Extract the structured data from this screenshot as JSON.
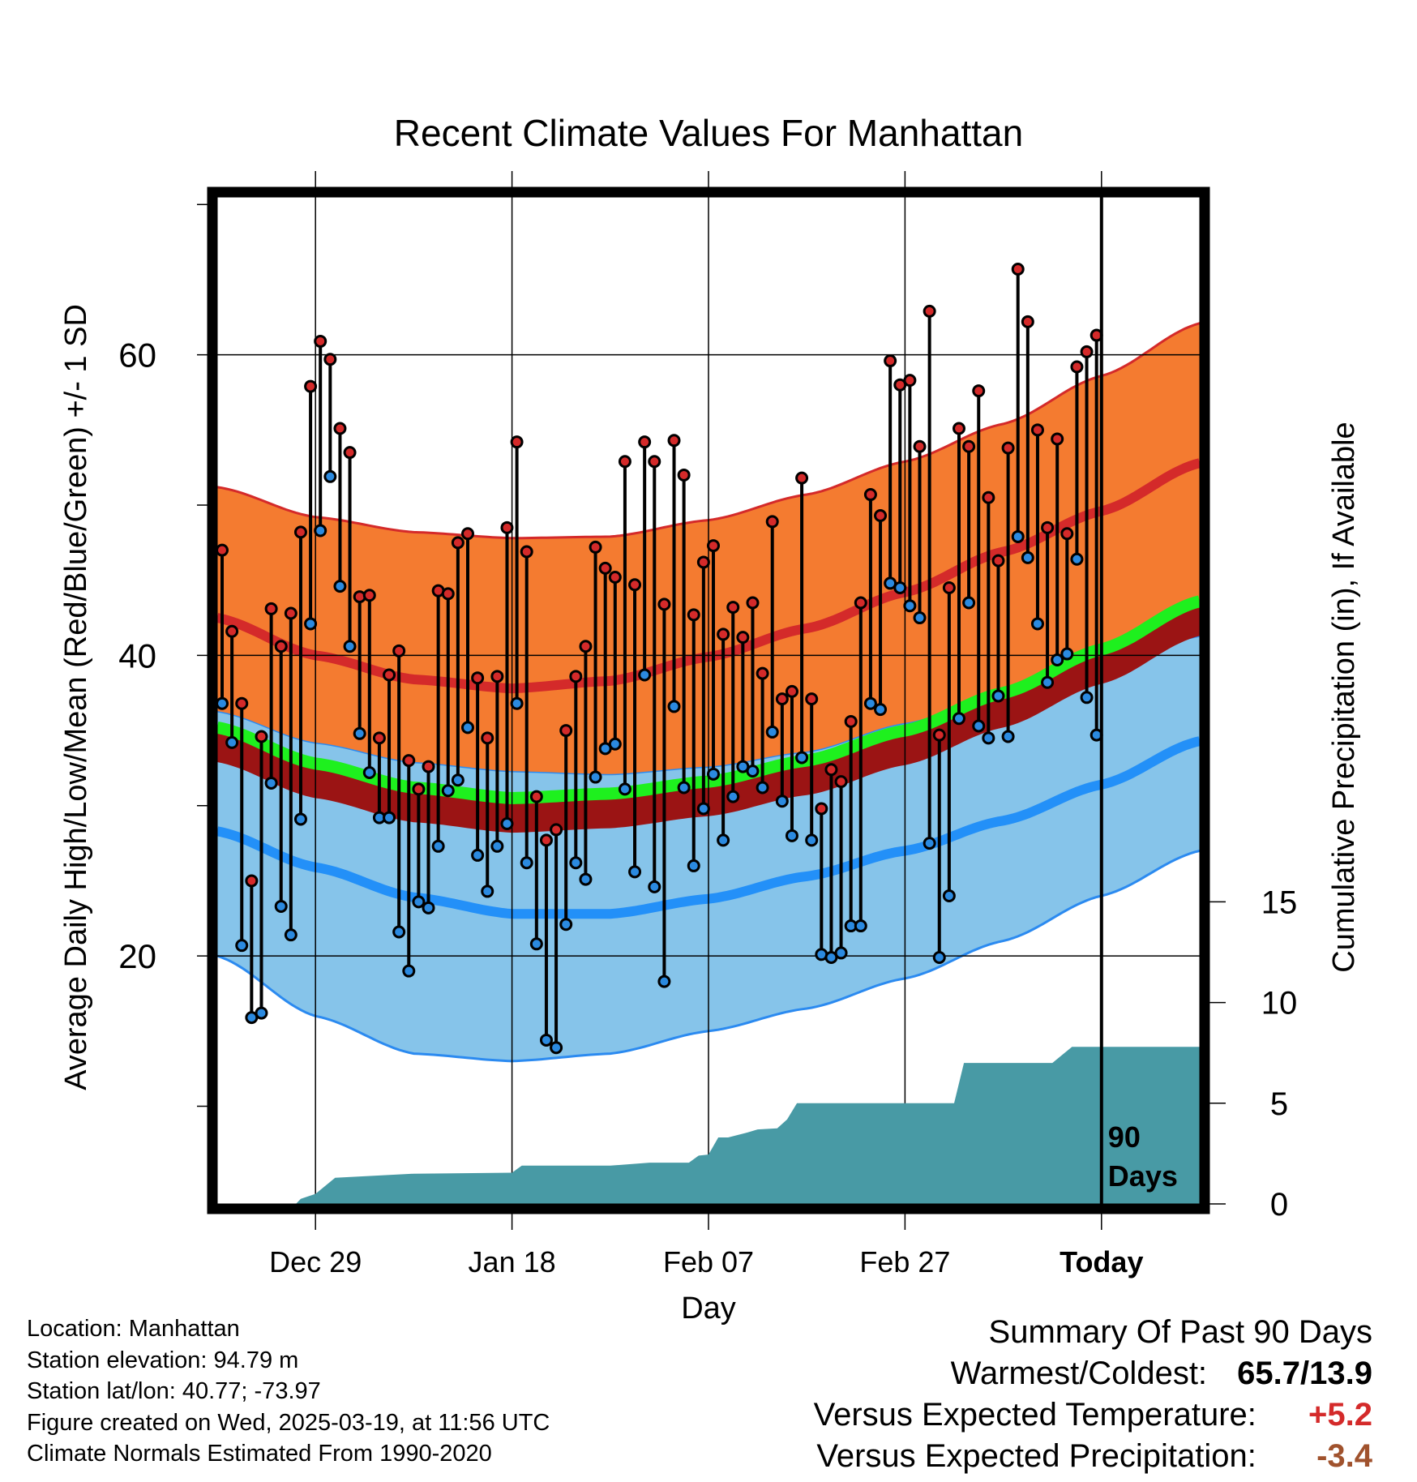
{
  "chart_data": {
    "type": "climate-range",
    "title": "Recent Climate Values For Manhattan",
    "xlabel": "Day",
    "ylabel_left": "Average Daily High/Low/Mean (Red/Blue/Green) +/- 1 SD",
    "ylabel_right": "Cumulative Precipitation (in), If Available",
    "x_tick_labels": [
      "Dec 29",
      "Jan 18",
      "Feb 07",
      "Feb 27",
      "Today"
    ],
    "x_tick_days": [
      10,
      30,
      50,
      70,
      90
    ],
    "x_days": 100,
    "y_left_ticks": [
      20,
      40,
      60
    ],
    "y_left_range": [
      3.5,
      70.5
    ],
    "y_right_ticks": [
      0,
      5,
      10,
      15
    ],
    "y_right_range": [
      0,
      50
    ],
    "today_day": 90,
    "today_label": [
      "90",
      "Days"
    ],
    "legend": "none",
    "colors": {
      "high_band": "#f47b30",
      "high_edge": "#d42a2a",
      "high_mean": "#d42a2a",
      "low_band": "#86c4ea",
      "low_edge": "#2b8af0",
      "low_mean": "#2390f8",
      "mean_line": "#1ef01e",
      "mean_band_dark": "#9b1414",
      "precip": "#489aa5",
      "high_marker": "#d42a2a",
      "low_marker": "#2b8ae0"
    },
    "normals": {
      "day": [
        0,
        10,
        20,
        30,
        40,
        50,
        60,
        70,
        80,
        90,
        100
      ],
      "high_mean": [
        42.5,
        40.0,
        38.4,
        37.8,
        38.3,
        39.9,
        41.8,
        44.2,
        46.9,
        49.6,
        52.8
      ],
      "high_upper": [
        51.2,
        49.2,
        48.2,
        47.8,
        47.9,
        49.0,
        50.7,
        52.9,
        55.4,
        58.6,
        62.1
      ],
      "high_lower": [
        36.3,
        34.2,
        32.9,
        32.3,
        32.1,
        32.6,
        33.6,
        35.5,
        37.5,
        39.3,
        41.3
      ],
      "low_mean": [
        28.3,
        25.9,
        23.9,
        22.8,
        22.8,
        23.8,
        25.3,
        27.0,
        29.0,
        31.4,
        34.3
      ],
      "low_upper": [
        36.3,
        34.2,
        32.9,
        32.3,
        32.1,
        32.6,
        33.6,
        35.5,
        37.5,
        39.3,
        41.3
      ],
      "low_lower": [
        20.0,
        16.0,
        13.5,
        13.0,
        13.5,
        15.0,
        16.5,
        18.5,
        21.0,
        24.0,
        27.0
      ],
      "mean_line": [
        35.2,
        32.8,
        31.2,
        30.5,
        30.8,
        31.6,
        33.0,
        35.0,
        37.5,
        40.4,
        43.6
      ]
    },
    "daily": [
      {
        "day": 0,
        "high": 47.0,
        "low": 36.8
      },
      {
        "day": 1,
        "high": 41.6,
        "low": 34.2
      },
      {
        "day": 2,
        "high": 36.8,
        "low": 20.7
      },
      {
        "day": 3,
        "high": 25.0,
        "low": 15.9
      },
      {
        "day": 4,
        "high": 34.6,
        "low": 16.2
      },
      {
        "day": 5,
        "high": 43.1,
        "low": 31.5
      },
      {
        "day": 6,
        "high": 40.6,
        "low": 23.3
      },
      {
        "day": 7,
        "high": 42.8,
        "low": 21.4
      },
      {
        "day": 8,
        "high": 48.2,
        "low": 29.1
      },
      {
        "day": 9,
        "high": 57.9,
        "low": 42.1
      },
      {
        "day": 10,
        "high": 60.9,
        "low": 48.3
      },
      {
        "day": 11,
        "high": 59.7,
        "low": 51.9
      },
      {
        "day": 12,
        "high": 55.1,
        "low": 44.6
      },
      {
        "day": 13,
        "high": 53.5,
        "low": 40.6
      },
      {
        "day": 14,
        "high": 43.9,
        "low": 34.8
      },
      {
        "day": 15,
        "high": 44.0,
        "low": 32.2
      },
      {
        "day": 16,
        "high": 34.5,
        "low": 29.2
      },
      {
        "day": 17,
        "high": 38.7,
        "low": 29.2
      },
      {
        "day": 18,
        "high": 40.3,
        "low": 21.6
      },
      {
        "day": 19,
        "high": 33.0,
        "low": 19.0
      },
      {
        "day": 20,
        "high": 31.1,
        "low": 23.6
      },
      {
        "day": 21,
        "high": 32.6,
        "low": 23.2
      },
      {
        "day": 22,
        "high": 44.3,
        "low": 27.3
      },
      {
        "day": 23,
        "high": 44.1,
        "low": 31.0
      },
      {
        "day": 24,
        "high": 47.5,
        "low": 31.7
      },
      {
        "day": 25,
        "high": 48.1,
        "low": 35.2
      },
      {
        "day": 26,
        "high": 38.5,
        "low": 26.7
      },
      {
        "day": 27,
        "high": 34.5,
        "low": 24.3
      },
      {
        "day": 28,
        "high": 38.6,
        "low": 27.3
      },
      {
        "day": 29,
        "high": 48.5,
        "low": 28.8
      },
      {
        "day": 30,
        "high": 54.2,
        "low": 36.8
      },
      {
        "day": 31,
        "high": 46.9,
        "low": 26.2
      },
      {
        "day": 32,
        "high": 30.6,
        "low": 20.8
      },
      {
        "day": 33,
        "high": 27.7,
        "low": 14.4
      },
      {
        "day": 34,
        "high": 28.4,
        "low": 13.9
      },
      {
        "day": 35,
        "high": 35.0,
        "low": 22.1
      },
      {
        "day": 36,
        "high": 38.6,
        "low": 26.2
      },
      {
        "day": 37,
        "high": 40.6,
        "low": 25.1
      },
      {
        "day": 38,
        "high": 47.2,
        "low": 31.9
      },
      {
        "day": 39,
        "high": 45.8,
        "low": 33.8
      },
      {
        "day": 40,
        "high": 45.2,
        "low": 34.1
      },
      {
        "day": 41,
        "high": 52.9,
        "low": 31.1
      },
      {
        "day": 42,
        "high": 44.7,
        "low": 25.6
      },
      {
        "day": 43,
        "high": 54.2,
        "low": 38.7
      },
      {
        "day": 44,
        "high": 52.9,
        "low": 24.6
      },
      {
        "day": 45,
        "high": 43.4,
        "low": 18.3
      },
      {
        "day": 46,
        "high": 54.3,
        "low": 36.6
      },
      {
        "day": 47,
        "high": 52.0,
        "low": 31.2
      },
      {
        "day": 48,
        "high": 42.7,
        "low": 26.0
      },
      {
        "day": 49,
        "high": 46.2,
        "low": 29.8
      },
      {
        "day": 50,
        "high": 47.3,
        "low": 32.1
      },
      {
        "day": 51,
        "high": 41.4,
        "low": 27.7
      },
      {
        "day": 52,
        "high": 43.2,
        "low": 30.6
      },
      {
        "day": 53,
        "high": 41.2,
        "low": 32.6
      },
      {
        "day": 54,
        "high": 43.5,
        "low": 32.3
      },
      {
        "day": 55,
        "high": 38.8,
        "low": 31.2
      },
      {
        "day": 56,
        "high": 48.9,
        "low": 34.9
      },
      {
        "day": 57,
        "high": 37.1,
        "low": 30.3
      },
      {
        "day": 58,
        "high": 37.6,
        "low": 28.0
      },
      {
        "day": 59,
        "high": 51.8,
        "low": 33.2
      },
      {
        "day": 60,
        "high": 37.1,
        "low": 27.7
      },
      {
        "day": 61,
        "high": 29.8,
        "low": 20.1
      },
      {
        "day": 62,
        "high": 32.4,
        "low": 19.9
      },
      {
        "day": 63,
        "high": 31.6,
        "low": 20.2
      },
      {
        "day": 64,
        "high": 35.6,
        "low": 22.0
      },
      {
        "day": 65,
        "high": 43.5,
        "low": 22.0
      },
      {
        "day": 66,
        "high": 50.7,
        "low": 36.8
      },
      {
        "day": 67,
        "high": 49.3,
        "low": 36.4
      },
      {
        "day": 68,
        "high": 59.6,
        "low": 44.8
      },
      {
        "day": 69,
        "high": 58.0,
        "low": 44.5
      },
      {
        "day": 70,
        "high": 58.3,
        "low": 43.3
      },
      {
        "day": 71,
        "high": 53.9,
        "low": 42.5
      },
      {
        "day": 72,
        "high": 62.9,
        "low": 27.5
      },
      {
        "day": 73,
        "high": 34.7,
        "low": 19.9
      },
      {
        "day": 74,
        "high": 44.5,
        "low": 24.0
      },
      {
        "day": 75,
        "high": 55.1,
        "low": 35.8
      },
      {
        "day": 76,
        "high": 53.9,
        "low": 43.5
      },
      {
        "day": 77,
        "high": 57.6,
        "low": 35.3
      },
      {
        "day": 78,
        "high": 50.5,
        "low": 34.5
      },
      {
        "day": 79,
        "high": 46.3,
        "low": 37.3
      },
      {
        "day": 80,
        "high": 53.8,
        "low": 34.6
      },
      {
        "day": 81,
        "high": 65.7,
        "low": 47.9
      },
      {
        "day": 82,
        "high": 62.2,
        "low": 46.5
      },
      {
        "day": 83,
        "high": 55.0,
        "low": 42.1
      },
      {
        "day": 84,
        "high": 48.5,
        "low": 38.2
      },
      {
        "day": 85,
        "high": 54.4,
        "low": 39.7
      },
      {
        "day": 86,
        "high": 48.1,
        "low": 40.1
      },
      {
        "day": 87,
        "high": 59.2,
        "low": 46.4
      },
      {
        "day": 88,
        "high": 60.2,
        "low": 37.2
      },
      {
        "day": 89,
        "high": 61.3,
        "low": 34.7
      }
    ],
    "precipitation": {
      "day": [
        0,
        8,
        8.5,
        10,
        12,
        20,
        30,
        31,
        40,
        44,
        48,
        49,
        50,
        51,
        52,
        54,
        55,
        57,
        58,
        59,
        60,
        64,
        70,
        75,
        76,
        80,
        85,
        87,
        90,
        100
      ],
      "cumulative_in": [
        0,
        0,
        0.25,
        0.5,
        1.3,
        1.5,
        1.55,
        1.9,
        1.9,
        2.05,
        2.05,
        2.4,
        2.45,
        3.3,
        3.3,
        3.55,
        3.7,
        3.75,
        4.2,
        5.0,
        5.0,
        5.0,
        5.0,
        5.0,
        7.0,
        7.0,
        7.0,
        7.8,
        7.8,
        7.8
      ]
    }
  },
  "location_info": {
    "location": "Location: Manhattan",
    "elevation": "Station elevation: 94.79 m",
    "latlon": "Station lat/lon: 40.77; -73.97",
    "created": "Figure created on Wed, 2025-03-19, at 11:56 UTC",
    "normals": "Climate Normals Estimated From 1990-2020"
  },
  "summary": {
    "title": "Summary Of Past 90 Days",
    "warmest_coldest_label": "Warmest/Coldest:",
    "warmest_coldest_value": "65.7/13.9",
    "temp_label": "Versus Expected Temperature:",
    "temp_value": "+5.2",
    "temp_color": "#d42a2a",
    "precip_label": "Versus Expected Precipitation:",
    "precip_value": "-3.4",
    "precip_color": "#a0522d"
  }
}
